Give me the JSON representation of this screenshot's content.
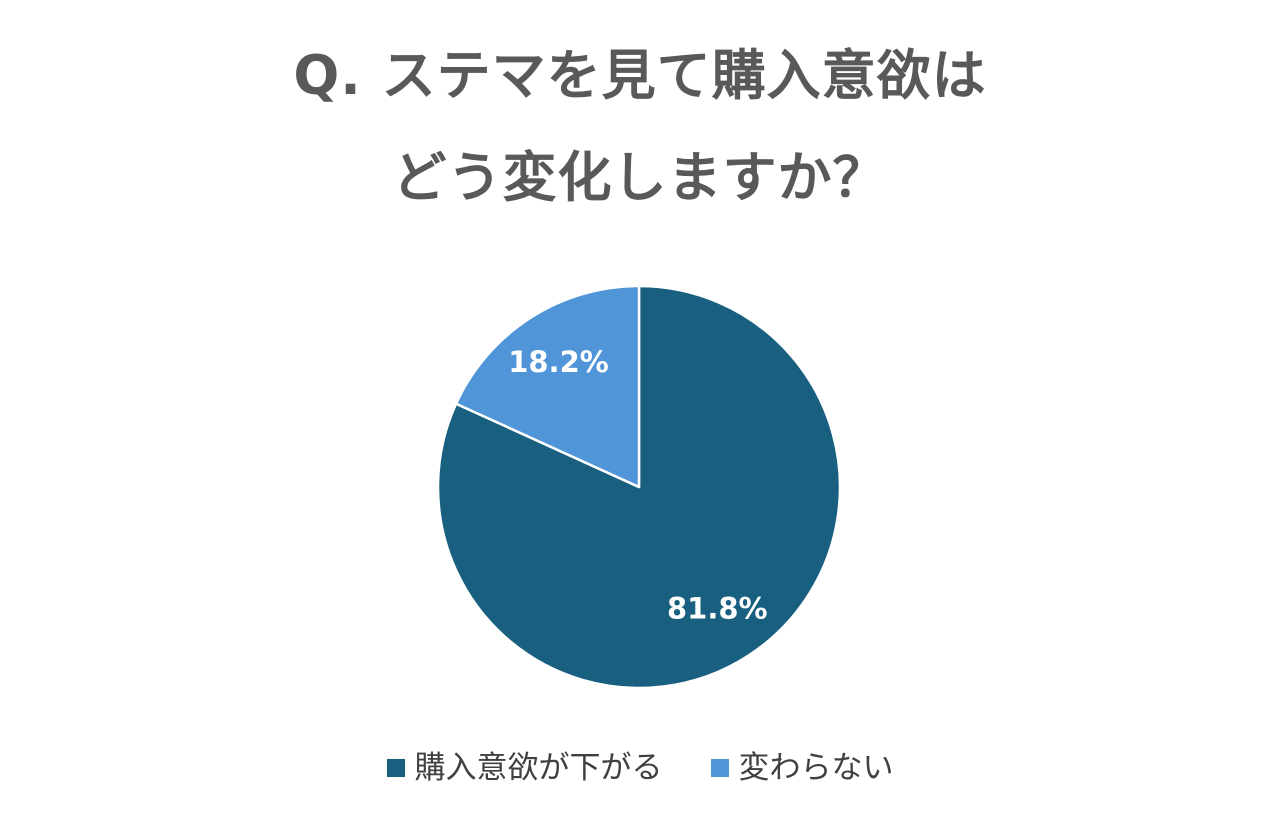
{
  "title": {
    "line1": "Q. ステマを見て購入意欲は",
    "line2": "どう変化しますか？"
  },
  "chart_data": {
    "type": "pie",
    "start_angle": "12 o'clock",
    "direction": "clockwise",
    "slices": [
      {
        "name": "購入意欲が下がる",
        "value": 81.8,
        "label": "81.8%",
        "color": "#185f80"
      },
      {
        "name": "変わらない",
        "value": 18.2,
        "label": "18.2%",
        "color": "#4f95d7"
      }
    ],
    "legend_position": "bottom",
    "slice_border_color": "#ffffff"
  }
}
